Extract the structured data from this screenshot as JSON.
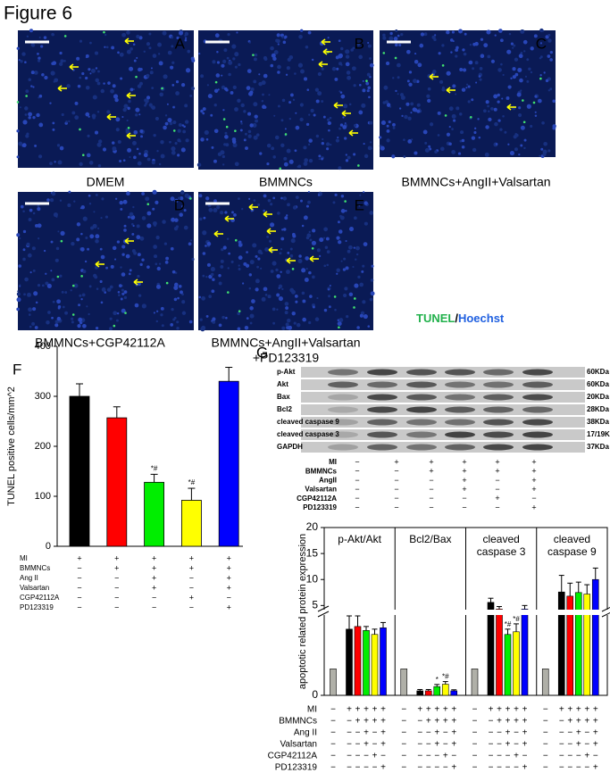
{
  "title": "Figure 6",
  "panels": [
    {
      "letter": "A",
      "caption": "DMEM"
    },
    {
      "letter": "B",
      "caption": "BMMNCs"
    },
    {
      "letter": "C",
      "caption": "BMMNCs+AngII+Valsartan"
    },
    {
      "letter": "D",
      "caption": "BMMNCs+CGP42112A"
    },
    {
      "letter": "E",
      "caption": "BMMNCs+AngII+Valsartan",
      "caption2": "+PD123319"
    }
  ],
  "stain": {
    "first": "TUNEL",
    "sep": "/",
    "second": "Hoechst"
  },
  "blot": {
    "letter": "G",
    "bands": [
      {
        "name": "p-Akt",
        "size": "60KDa"
      },
      {
        "name": "Akt",
        "size": "60KDa"
      },
      {
        "name": "Bax",
        "size": "20KDa"
      },
      {
        "name": "Bcl2",
        "size": "28KDa"
      },
      {
        "name": "cleaved caspase 9",
        "size": "38KDa"
      },
      {
        "name": "cleaved caspase 3",
        "size": "17/19KDa"
      },
      {
        "name": "GAPDH",
        "size": "37KDa"
      }
    ],
    "conditions": [
      {
        "name": "MI",
        "signs": [
          "−",
          "+",
          "+",
          "+",
          "+",
          "+"
        ]
      },
      {
        "name": "BMMNCs",
        "signs": [
          "−",
          "−",
          "+",
          "+",
          "+",
          "+"
        ]
      },
      {
        "name": "AngII",
        "signs": [
          "−",
          "−",
          "−",
          "+",
          "−",
          "+"
        ]
      },
      {
        "name": "Valsartan",
        "signs": [
          "−",
          "−",
          "−",
          "+",
          "−",
          "+"
        ]
      },
      {
        "name": "CGP42112A",
        "signs": [
          "−",
          "−",
          "−",
          "−",
          "+",
          "−"
        ]
      },
      {
        "name": "PD123319",
        "signs": [
          "−",
          "−",
          "−",
          "−",
          "−",
          "+"
        ]
      }
    ]
  },
  "chart_data": [
    {
      "type": "bar",
      "letter": "F",
      "ylabel": "TUNEL positive cells/mm^2",
      "ylim": [
        0,
        400
      ],
      "yticks": [
        0,
        100,
        200,
        300,
        400
      ],
      "values": [
        300,
        257,
        128,
        92,
        330
      ],
      "errors": [
        25,
        22,
        16,
        24,
        28
      ],
      "colors": [
        "#000000",
        "#ff0000",
        "#00ee00",
        "#ffff00",
        "#0000ff"
      ],
      "markers": [
        null,
        null,
        "*#",
        "*#",
        null
      ],
      "conditions": [
        {
          "name": "MI",
          "signs": [
            "+",
            "+",
            "+",
            "+",
            "+"
          ]
        },
        {
          "name": "BMMNCs",
          "signs": [
            "−",
            "+",
            "+",
            "+",
            "+"
          ]
        },
        {
          "name": "Ang II",
          "signs": [
            "−",
            "−",
            "+",
            "−",
            "+"
          ]
        },
        {
          "name": "Valsartan",
          "signs": [
            "−",
            "−",
            "+",
            "−",
            "+"
          ]
        },
        {
          "name": "CGP42112A",
          "signs": [
            "−",
            "−",
            "−",
            "+",
            "−"
          ]
        },
        {
          "name": "PD123319",
          "signs": [
            "−",
            "−",
            "−",
            "−",
            "+"
          ]
        }
      ]
    },
    {
      "type": "grouped_bar",
      "ylabel": "apoptotic related protein expression",
      "ylim": [
        0,
        20
      ],
      "yticks": [
        0,
        5,
        10,
        15,
        20
      ],
      "y_break": 3,
      "categories": [
        "p-Akt/Akt",
        "Bcl2/Bax",
        "cleaved caspase 3",
        "cleaved caspase 9"
      ],
      "series": [
        {
          "color": "#b0b0a8",
          "values": [
            1,
            1,
            1,
            1
          ],
          "errors": [
            0,
            0,
            0,
            0
          ],
          "markers": [
            null,
            null,
            null,
            null
          ]
        },
        {
          "color": "#000000",
          "values": [
            2.5,
            0.17,
            5.6,
            7.6
          ],
          "errors": [
            0.5,
            0.05,
            0.8,
            3.2
          ],
          "markers": [
            null,
            null,
            null,
            null
          ]
        },
        {
          "color": "#ff0000",
          "values": [
            2.6,
            0.17,
            4.3,
            6.8
          ],
          "errors": [
            0.4,
            0.05,
            0.5,
            2.5
          ],
          "markers": [
            null,
            null,
            null,
            null
          ]
        },
        {
          "color": "#00ee00",
          "values": [
            2.45,
            0.33,
            2.3,
            7.5
          ],
          "errors": [
            0.15,
            0.08,
            0.2,
            2.0
          ],
          "markers": [
            null,
            "*",
            "*#",
            null
          ]
        },
        {
          "color": "#ffff00",
          "values": [
            2.3,
            0.42,
            2.4,
            7.2
          ],
          "errors": [
            0.2,
            0.1,
            0.3,
            1.8
          ],
          "markers": [
            null,
            "*#",
            "*#",
            null
          ]
        },
        {
          "color": "#0000ff",
          "values": [
            2.55,
            0.17,
            4.3,
            10
          ],
          "errors": [
            0.2,
            0.04,
            0.7,
            2.2
          ],
          "markers": [
            null,
            null,
            null,
            null
          ]
        }
      ],
      "conditions": [
        {
          "name": "MI",
          "signs": [
            "−",
            "+",
            "+",
            "+",
            "+",
            "+"
          ]
        },
        {
          "name": "BMMNCs",
          "signs": [
            "−",
            "−",
            "+",
            "+",
            "+",
            "+"
          ]
        },
        {
          "name": "Ang II",
          "signs": [
            "−",
            "−",
            "−",
            "+",
            "−",
            "+"
          ]
        },
        {
          "name": "Valsartan",
          "signs": [
            "−",
            "−",
            "−",
            "+",
            "−",
            "+"
          ]
        },
        {
          "name": "CGP42112A",
          "signs": [
            "−",
            "−",
            "−",
            "−",
            "+",
            "−"
          ]
        },
        {
          "name": "PD123319",
          "signs": [
            "−",
            "−",
            "−",
            "−",
            "−",
            "+"
          ]
        }
      ]
    }
  ]
}
